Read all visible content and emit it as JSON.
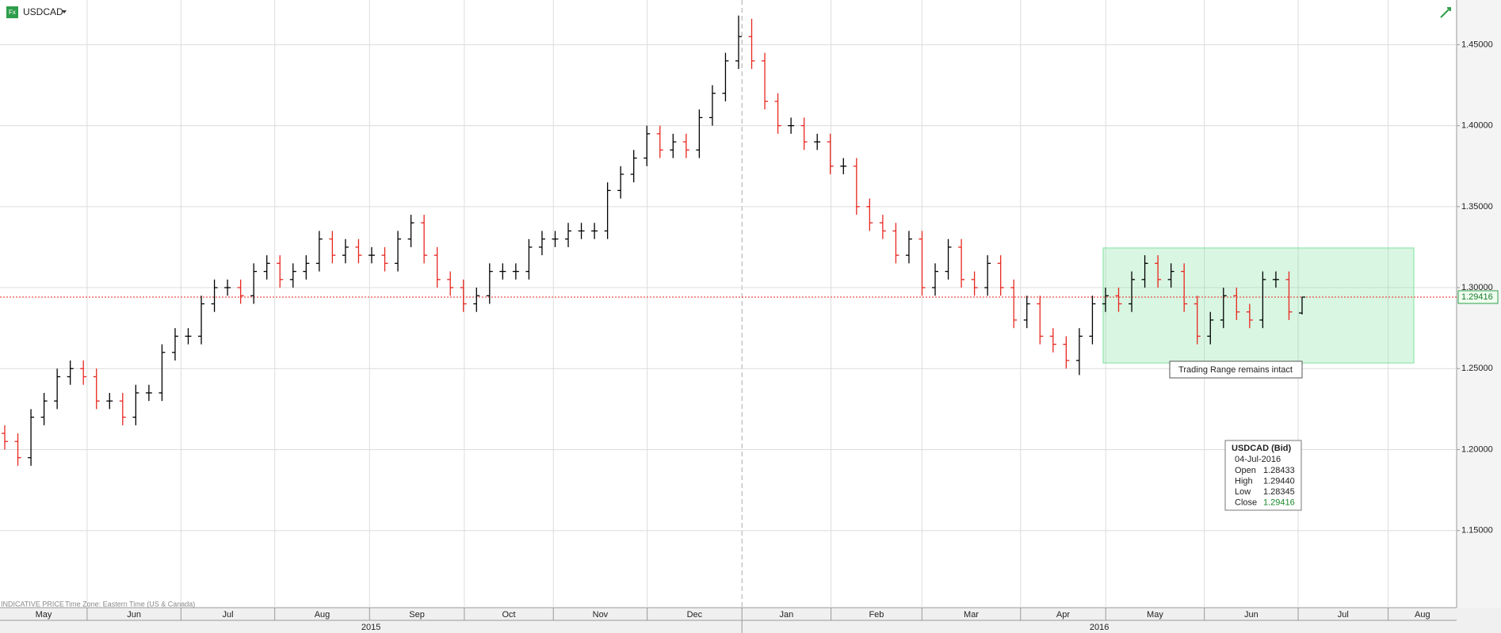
{
  "chart_data": {
    "type": "ohlc",
    "title": "USDCAD",
    "series": {
      "open": [
        1.21,
        1.205,
        1.195,
        1.22,
        1.23,
        1.245,
        1.25,
        1.245,
        1.23,
        1.23,
        1.22,
        1.235,
        1.235,
        1.26,
        1.27,
        1.27,
        1.29,
        1.3,
        1.3,
        1.295,
        1.31,
        1.315,
        1.305,
        1.31,
        1.315,
        1.33,
        1.32,
        1.325,
        1.32,
        1.32,
        1.315,
        1.33,
        1.34,
        1.32,
        1.305,
        1.3,
        1.29,
        1.295,
        1.31,
        1.31,
        1.31,
        1.325,
        1.33,
        1.33,
        1.335,
        1.335,
        1.335,
        1.36,
        1.37,
        1.38,
        1.395,
        1.385,
        1.39,
        1.385,
        1.405,
        1.42,
        1.44,
        1.455,
        1.44,
        1.415,
        1.4,
        1.4,
        1.39,
        1.39,
        1.375,
        1.375,
        1.35,
        1.34,
        1.335,
        1.32,
        1.33,
        1.3,
        1.31,
        1.325,
        1.305,
        1.3,
        1.315,
        1.3,
        1.28,
        1.29,
        1.27,
        1.265,
        1.255,
        1.27,
        1.29,
        1.295,
        1.29,
        1.305,
        1.315,
        1.305,
        1.31,
        1.29,
        1.27,
        1.28,
        1.295,
        1.285,
        1.28,
        1.305,
        1.305,
        1.28433
      ],
      "high": [
        1.215,
        1.21,
        1.225,
        1.235,
        1.25,
        1.255,
        1.255,
        1.25,
        1.235,
        1.235,
        1.24,
        1.24,
        1.265,
        1.275,
        1.275,
        1.295,
        1.305,
        1.305,
        1.305,
        1.315,
        1.32,
        1.32,
        1.315,
        1.32,
        1.335,
        1.335,
        1.33,
        1.33,
        1.325,
        1.325,
        1.335,
        1.345,
        1.345,
        1.325,
        1.31,
        1.305,
        1.3,
        1.315,
        1.315,
        1.315,
        1.33,
        1.335,
        1.335,
        1.34,
        1.34,
        1.34,
        1.365,
        1.375,
        1.385,
        1.4,
        1.4,
        1.395,
        1.395,
        1.41,
        1.425,
        1.445,
        1.468,
        1.466,
        1.445,
        1.42,
        1.405,
        1.405,
        1.395,
        1.395,
        1.38,
        1.38,
        1.355,
        1.345,
        1.34,
        1.335,
        1.335,
        1.315,
        1.33,
        1.33,
        1.31,
        1.32,
        1.32,
        1.305,
        1.295,
        1.295,
        1.275,
        1.27,
        1.275,
        1.295,
        1.3,
        1.3,
        1.31,
        1.32,
        1.32,
        1.315,
        1.315,
        1.295,
        1.285,
        1.3,
        1.3,
        1.29,
        1.31,
        1.31,
        1.31,
        1.2944
      ],
      "low": [
        1.2,
        1.19,
        1.19,
        1.215,
        1.225,
        1.24,
        1.24,
        1.225,
        1.225,
        1.215,
        1.215,
        1.23,
        1.23,
        1.255,
        1.265,
        1.265,
        1.285,
        1.295,
        1.29,
        1.29,
        1.305,
        1.3,
        1.3,
        1.305,
        1.31,
        1.315,
        1.315,
        1.315,
        1.315,
        1.31,
        1.31,
        1.325,
        1.315,
        1.3,
        1.295,
        1.285,
        1.285,
        1.29,
        1.305,
        1.305,
        1.305,
        1.32,
        1.325,
        1.325,
        1.33,
        1.33,
        1.33,
        1.355,
        1.365,
        1.375,
        1.38,
        1.38,
        1.38,
        1.38,
        1.4,
        1.415,
        1.435,
        1.435,
        1.41,
        1.395,
        1.395,
        1.385,
        1.385,
        1.37,
        1.37,
        1.345,
        1.335,
        1.33,
        1.315,
        1.315,
        1.295,
        1.295,
        1.305,
        1.3,
        1.295,
        1.295,
        1.295,
        1.275,
        1.275,
        1.265,
        1.26,
        1.25,
        1.246,
        1.265,
        1.285,
        1.285,
        1.285,
        1.3,
        1.3,
        1.3,
        1.285,
        1.265,
        1.265,
        1.275,
        1.28,
        1.275,
        1.275,
        1.3,
        1.28,
        1.28345
      ],
      "close": [
        1.205,
        1.195,
        1.22,
        1.23,
        1.245,
        1.25,
        1.245,
        1.23,
        1.23,
        1.22,
        1.235,
        1.235,
        1.26,
        1.27,
        1.27,
        1.29,
        1.3,
        1.3,
        1.295,
        1.31,
        1.315,
        1.305,
        1.31,
        1.315,
        1.33,
        1.32,
        1.325,
        1.32,
        1.32,
        1.315,
        1.33,
        1.34,
        1.32,
        1.305,
        1.3,
        1.29,
        1.295,
        1.31,
        1.31,
        1.31,
        1.325,
        1.33,
        1.33,
        1.335,
        1.335,
        1.335,
        1.36,
        1.37,
        1.38,
        1.395,
        1.385,
        1.39,
        1.385,
        1.405,
        1.42,
        1.44,
        1.455,
        1.44,
        1.415,
        1.4,
        1.4,
        1.39,
        1.39,
        1.375,
        1.375,
        1.35,
        1.34,
        1.335,
        1.32,
        1.33,
        1.3,
        1.31,
        1.325,
        1.305,
        1.3,
        1.315,
        1.3,
        1.28,
        1.29,
        1.27,
        1.265,
        1.255,
        1.27,
        1.29,
        1.295,
        1.29,
        1.305,
        1.315,
        1.305,
        1.31,
        1.29,
        1.27,
        1.28,
        1.295,
        1.285,
        1.28,
        1.305,
        1.305,
        1.285,
        1.29416
      ]
    },
    "up_color": "#000000",
    "down_color": "#e8261e",
    "ylim": [
      1.1024,
      1.4776
    ],
    "yticks": [
      {
        "value": 1.15,
        "label": "1.15000"
      },
      {
        "value": 1.2,
        "label": "1.20000"
      },
      {
        "value": 1.25,
        "label": "1.25000"
      },
      {
        "value": 1.3,
        "label": "1.30000"
      },
      {
        "value": 1.35,
        "label": "1.35000"
      },
      {
        "value": 1.4,
        "label": "1.40000"
      },
      {
        "value": 1.45,
        "label": "1.45000"
      }
    ],
    "grid": true,
    "months": [
      "May",
      "Jun",
      "Jul",
      "Aug",
      "Sep",
      "Oct",
      "Nov",
      "Dec",
      "Jan",
      "Feb",
      "Mar",
      "Apr",
      "May",
      "Jun",
      "Jul",
      "Aug"
    ],
    "years": [
      "2015",
      "2016"
    ],
    "last_price": {
      "value": 1.29416,
      "label": "1.29416",
      "color": "#e8261e"
    },
    "range_box": {
      "ylim": [
        1.2535,
        1.3245
      ],
      "label": "Trading Range remains intact",
      "color": "#7fe0a0"
    },
    "info_box": {
      "title": "USDCAD (Bid)",
      "date": "04-Jul-2016",
      "rows": [
        [
          "Open",
          "1.28433"
        ],
        [
          "High",
          "1.29440"
        ],
        [
          "Low",
          "1.28345"
        ],
        [
          "Close",
          "1.29416"
        ]
      ]
    },
    "footer": [
      "INDICATIVE PRICE",
      "Time Zone: Eastern Time (US & Canada)"
    ]
  }
}
